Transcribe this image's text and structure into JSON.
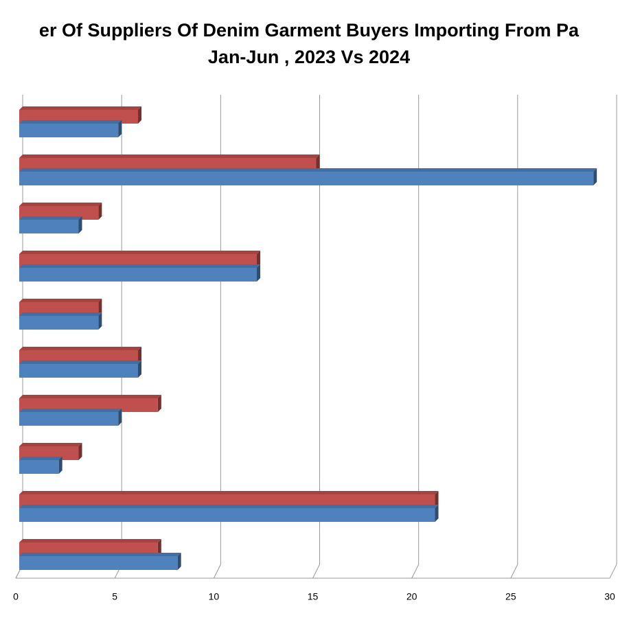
{
  "chart_data": {
    "type": "bar",
    "orientation": "horizontal",
    "title": [
      "er Of Suppliers Of Denim Garment Buyers Importing From Pa",
      "Jan-Jun , 2023 Vs 2024"
    ],
    "categories": [
      null,
      null,
      null,
      null,
      null,
      null,
      null,
      null,
      null,
      null
    ],
    "series": [
      {
        "color": "#c0504d",
        "values": [
          6,
          15,
          4,
          12,
          4,
          6,
          7,
          3,
          21,
          7
        ]
      },
      {
        "color": "#4f81bd",
        "values": [
          5,
          29,
          3,
          12,
          4,
          6,
          5,
          2,
          21,
          8
        ]
      }
    ],
    "xlim": [
      0,
      30
    ],
    "xticks": [
      0,
      5,
      10,
      15,
      20,
      25,
      30
    ],
    "grid": true
  }
}
